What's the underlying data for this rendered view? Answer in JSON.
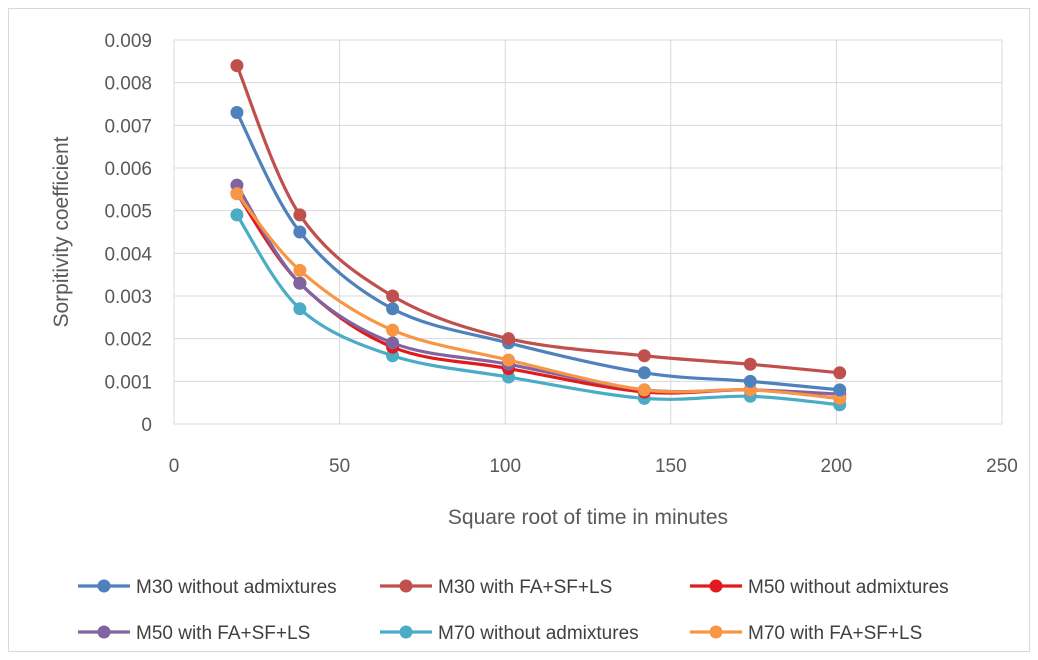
{
  "chart_data": {
    "type": "line",
    "title": "",
    "xlabel": "Square root of time in minutes",
    "ylabel": "Sorpitivity coefficient",
    "xlim": [
      0,
      250
    ],
    "ylim": [
      0,
      0.009
    ],
    "xticks": [
      "0",
      "50",
      "100",
      "150",
      "200",
      "250"
    ],
    "yticks": [
      "0",
      "0.001",
      "0.002",
      "0.003",
      "0.004",
      "0.005",
      "0.006",
      "0.007",
      "0.008",
      "0.009"
    ],
    "grid": true,
    "legend_position": "bottom",
    "x": [
      19,
      38,
      66,
      101,
      142,
      174,
      201
    ],
    "series": [
      {
        "name": "M30 without admixtures",
        "color": "#4f81bd",
        "values": [
          0.0073,
          0.0045,
          0.0027,
          0.0019,
          0.0012,
          0.001,
          0.0008
        ]
      },
      {
        "name": "M30 with FA+SF+LS",
        "color": "#c0504d",
        "values": [
          0.0084,
          0.0049,
          0.003,
          0.002,
          0.0016,
          0.0014,
          0.0012
        ]
      },
      {
        "name": "M50 without admixtures",
        "color": "#e31a1c",
        "values": [
          0.0054,
          0.0033,
          0.0018,
          0.0013,
          0.00075,
          0.0008,
          0.0006
        ]
      },
      {
        "name": "M50 with FA+SF+LS",
        "color": "#8064a2",
        "values": [
          0.0056,
          0.0033,
          0.0019,
          0.0014,
          0.0008,
          0.0008,
          0.0007
        ]
      },
      {
        "name": "M70 without admixtures",
        "color": "#4bacc6",
        "values": [
          0.0049,
          0.0027,
          0.0016,
          0.0011,
          0.0006,
          0.00065,
          0.00045
        ]
      },
      {
        "name": "M70 with FA+SF+LS",
        "color": "#f79646",
        "values": [
          0.0054,
          0.0036,
          0.0022,
          0.0015,
          0.0008,
          0.0008,
          0.0006
        ]
      }
    ]
  }
}
